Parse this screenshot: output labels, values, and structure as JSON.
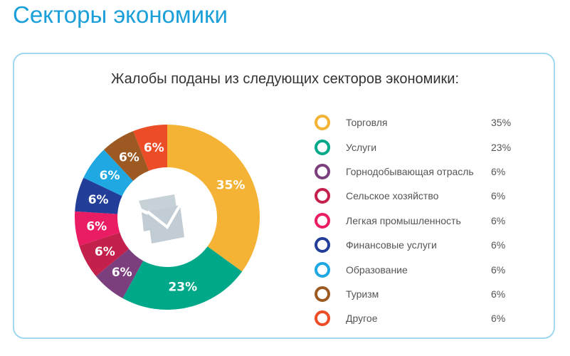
{
  "page_title": "Секторы экономики",
  "chart_data": {
    "type": "pie",
    "title": "Жалобы поданы из следующих секторов экономики:",
    "center_icon": "envelope-icon",
    "legend_position": "right",
    "slices": [
      {
        "label": "Торговля",
        "value": 35,
        "display": "35%",
        "color": "#f5b335"
      },
      {
        "label": "Услуги",
        "value": 23,
        "display": "23%",
        "color": "#00a88a"
      },
      {
        "label": "Горнодобывающая отрасль",
        "value": 6,
        "display": "6%",
        "color": "#7b3f7e"
      },
      {
        "label": "Сельское хозяйство",
        "value": 6,
        "display": "6%",
        "color": "#c4204c"
      },
      {
        "label": "Легкая промышленность",
        "value": 6,
        "display": "6%",
        "color": "#ea1c64"
      },
      {
        "label": "Финансовые услуги",
        "value": 6,
        "display": "6%",
        "color": "#233e98"
      },
      {
        "label": "Образование",
        "value": 6,
        "display": "6%",
        "color": "#1fa8e1"
      },
      {
        "label": "Туризм",
        "value": 6,
        "display": "6%",
        "color": "#9c5a22"
      },
      {
        "label": "Другое",
        "value": 6,
        "display": "6%",
        "color": "#ec4d27"
      }
    ]
  }
}
